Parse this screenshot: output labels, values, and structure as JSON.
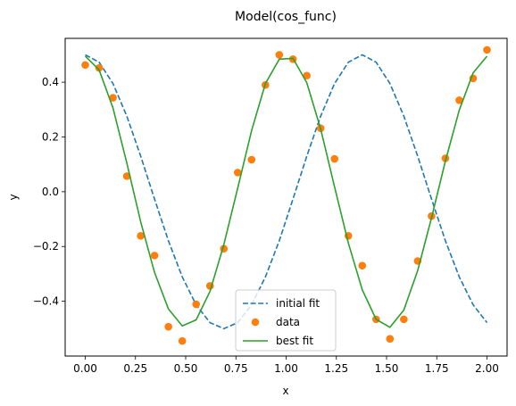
{
  "chart_data": {
    "type": "line",
    "title": "Model(cos_func)",
    "xlabel": "x",
    "ylabel": "y",
    "xlim": [
      -0.1,
      2.1
    ],
    "ylim": [
      -0.6,
      0.56
    ],
    "x_ticks": [
      0.0,
      0.25,
      0.5,
      0.75,
      1.0,
      1.25,
      1.5,
      1.75,
      2.0
    ],
    "x_tick_labels": [
      "0.00",
      "0.25",
      "0.50",
      "0.75",
      "1.00",
      "1.25",
      "1.50",
      "1.75",
      "2.00"
    ],
    "y_ticks": [
      -0.4,
      -0.2,
      0.0,
      0.2,
      0.4
    ],
    "y_tick_labels": [
      "−0.4",
      "−0.2",
      "0.0",
      "0.2",
      "0.4"
    ],
    "grid": false,
    "legend_position": "lower-center",
    "series": [
      {
        "name": "initial fit",
        "kind": "dashed-line",
        "color": "#1f77b4",
        "x": [
          0.0,
          0.069,
          0.138,
          0.207,
          0.276,
          0.345,
          0.414,
          0.483,
          0.552,
          0.621,
          0.69,
          0.759,
          0.828,
          0.897,
          0.966,
          1.034,
          1.103,
          1.172,
          1.241,
          1.31,
          1.379,
          1.448,
          1.517,
          1.586,
          1.655,
          1.724,
          1.793,
          1.862,
          1.931,
          2.0
        ],
        "y": [
          0.5,
          0.473,
          0.395,
          0.276,
          0.13,
          -0.027,
          -0.179,
          -0.311,
          -0.413,
          -0.478,
          -0.5,
          -0.478,
          -0.413,
          -0.311,
          -0.179,
          -0.027,
          0.13,
          0.276,
          0.395,
          0.473,
          0.5,
          0.473,
          0.395,
          0.276,
          0.13,
          -0.027,
          -0.179,
          -0.311,
          -0.413,
          -0.478
        ]
      },
      {
        "name": "data",
        "kind": "markers",
        "color": "#ff7f0e",
        "x": [
          0.0,
          0.069,
          0.138,
          0.207,
          0.276,
          0.345,
          0.414,
          0.483,
          0.552,
          0.621,
          0.69,
          0.759,
          0.828,
          0.897,
          0.966,
          1.034,
          1.103,
          1.172,
          1.241,
          1.31,
          1.379,
          1.448,
          1.517,
          1.586,
          1.655,
          1.724,
          1.793,
          1.862,
          1.931,
          2.0
        ],
        "y": [
          0.463,
          0.452,
          0.343,
          0.057,
          -0.161,
          -0.233,
          -0.493,
          -0.545,
          -0.411,
          -0.344,
          -0.208,
          0.07,
          0.117,
          0.39,
          0.5,
          0.484,
          0.424,
          0.232,
          0.12,
          -0.161,
          -0.27,
          -0.466,
          -0.537,
          -0.466,
          -0.253,
          -0.089,
          0.122,
          0.334,
          0.414,
          0.518
        ]
      },
      {
        "name": "best fit",
        "kind": "solid-line",
        "color": "#2ca02c",
        "x": [
          0.0,
          0.069,
          0.138,
          0.207,
          0.276,
          0.345,
          0.414,
          0.483,
          0.552,
          0.621,
          0.69,
          0.759,
          0.828,
          0.897,
          0.966,
          1.034,
          1.103,
          1.172,
          1.241,
          1.31,
          1.379,
          1.448,
          1.517,
          1.586,
          1.655,
          1.724,
          1.793,
          1.862,
          1.931,
          2.0
        ],
        "y": [
          0.495,
          0.445,
          0.306,
          0.105,
          -0.11,
          -0.295,
          -0.428,
          -0.49,
          -0.468,
          -0.364,
          -0.193,
          0.013,
          0.223,
          0.395,
          0.484,
          0.487,
          0.398,
          0.229,
          0.018,
          -0.188,
          -0.358,
          -0.466,
          -0.495,
          -0.432,
          -0.288,
          -0.095,
          0.112,
          0.298,
          0.434,
          0.495
        ]
      }
    ]
  }
}
